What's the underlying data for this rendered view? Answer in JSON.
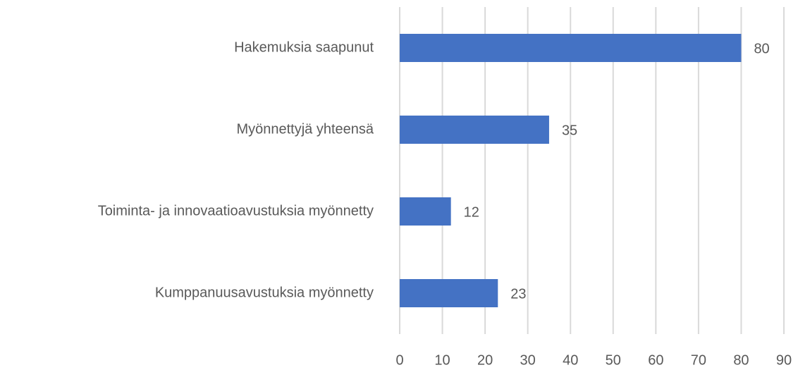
{
  "chart_data": {
    "type": "barh",
    "categories": [
      "Hakemuksia saapunut",
      "Myönnettyjä yhteensä",
      "Toiminta- ja innovaatioavustuksia myönnetty",
      "Kumppanuusavustuksia myönnetty"
    ],
    "values": [
      80,
      35,
      12,
      23
    ],
    "color": "#4472c4",
    "xlim": [
      0,
      90
    ],
    "xticks": [
      0,
      10,
      20,
      30,
      40,
      50,
      60,
      70,
      80,
      90
    ],
    "grid": true
  }
}
